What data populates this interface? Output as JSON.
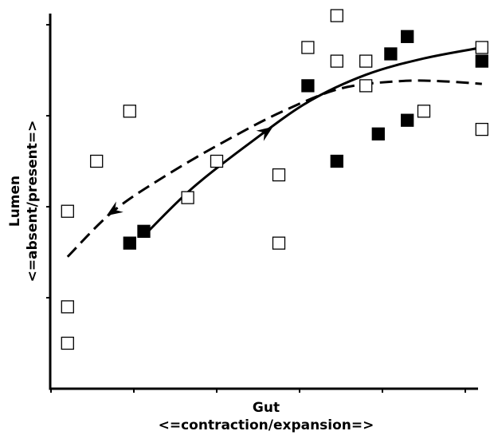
{
  "chart_data": {
    "type": "scatter",
    "title": "",
    "xlabel_line1": "Gut",
    "xlabel_line2": "<=contraction/expansion=>",
    "ylabel_line1": "Lumen",
    "ylabel_line2": "<=absent/present=>",
    "xlim": [
      0,
      5.2
    ],
    "ylim": [
      0,
      4.2
    ],
    "x_ticks": [
      0,
      1,
      2,
      3,
      4,
      5
    ],
    "y_ticks": [
      1,
      2,
      3,
      4
    ],
    "grid": false,
    "legend": "none",
    "series": [
      {
        "marker": "open-square",
        "color": "#000000",
        "points": [
          [
            0.2,
            0.5
          ],
          [
            0.2,
            0.9
          ],
          [
            0.2,
            1.95
          ],
          [
            0.55,
            2.5
          ],
          [
            0.95,
            3.05
          ],
          [
            1.65,
            2.1
          ],
          [
            2.0,
            2.5
          ],
          [
            2.75,
            1.6
          ],
          [
            2.75,
            2.35
          ],
          [
            3.1,
            3.75
          ],
          [
            3.45,
            4.1
          ],
          [
            3.45,
            3.6
          ],
          [
            3.8,
            3.6
          ],
          [
            3.8,
            3.33
          ],
          [
            4.5,
            3.05
          ],
          [
            5.2,
            2.85
          ],
          [
            5.2,
            3.75
          ]
        ]
      },
      {
        "marker": "filled-square",
        "color": "#000000",
        "points": [
          [
            0.95,
            1.6
          ],
          [
            1.12,
            1.73
          ],
          [
            3.1,
            3.33
          ],
          [
            3.45,
            2.5
          ],
          [
            3.95,
            2.8
          ],
          [
            4.1,
            3.68
          ],
          [
            4.3,
            3.87
          ],
          [
            4.3,
            2.95
          ],
          [
            5.2,
            3.6
          ]
        ]
      }
    ],
    "curves": [
      {
        "style": "solid",
        "arrow": "forward",
        "points": [
          [
            1.12,
            1.68
          ],
          [
            1.7,
            2.2
          ],
          [
            2.4,
            2.7
          ],
          [
            3.1,
            3.15
          ],
          [
            3.8,
            3.45
          ],
          [
            4.5,
            3.63
          ],
          [
            5.2,
            3.75
          ]
        ],
        "arrow_at": 2.6
      },
      {
        "style": "dashed",
        "arrow": "backward",
        "points": [
          [
            0.2,
            1.45
          ],
          [
            0.75,
            1.95
          ],
          [
            1.4,
            2.35
          ],
          [
            2.1,
            2.72
          ],
          [
            2.8,
            3.05
          ],
          [
            3.5,
            3.3
          ],
          [
            4.2,
            3.38
          ],
          [
            4.7,
            3.38
          ],
          [
            5.2,
            3.35
          ]
        ],
        "arrow_at": 0.75
      }
    ]
  }
}
